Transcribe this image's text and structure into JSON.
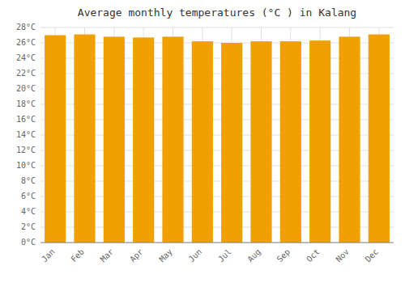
{
  "chart_data": {
    "type": "bar",
    "title": "Average monthly temperatures (°C ) in Kalang",
    "categories": [
      "Jan",
      "Feb",
      "Mar",
      "Apr",
      "May",
      "Jun",
      "Jul",
      "Aug",
      "Sep",
      "Oct",
      "Nov",
      "Dec"
    ],
    "values": [
      27.0,
      27.1,
      26.8,
      26.7,
      26.8,
      26.2,
      26.0,
      26.2,
      26.2,
      26.3,
      26.8,
      27.1
    ],
    "color": "#F0A000",
    "ylim": [
      0,
      28
    ],
    "yticks": [
      {
        "value": 0,
        "label": "0°C"
      },
      {
        "value": 2,
        "label": "2°C"
      },
      {
        "value": 4,
        "label": "4°C"
      },
      {
        "value": 6,
        "label": "6°C"
      },
      {
        "value": 8,
        "label": "8°C"
      },
      {
        "value": 10,
        "label": "10°C"
      },
      {
        "value": 12,
        "label": "12°C"
      },
      {
        "value": 14,
        "label": "14°C"
      },
      {
        "value": 16,
        "label": "16°C"
      },
      {
        "value": 18,
        "label": "18°C"
      },
      {
        "value": 20,
        "label": "20°C"
      },
      {
        "value": 22,
        "label": "22°C"
      },
      {
        "value": 24,
        "label": "24°C"
      },
      {
        "value": 26,
        "label": "26°C"
      },
      {
        "value": 28,
        "label": "28°C"
      }
    ],
    "grid": true
  }
}
